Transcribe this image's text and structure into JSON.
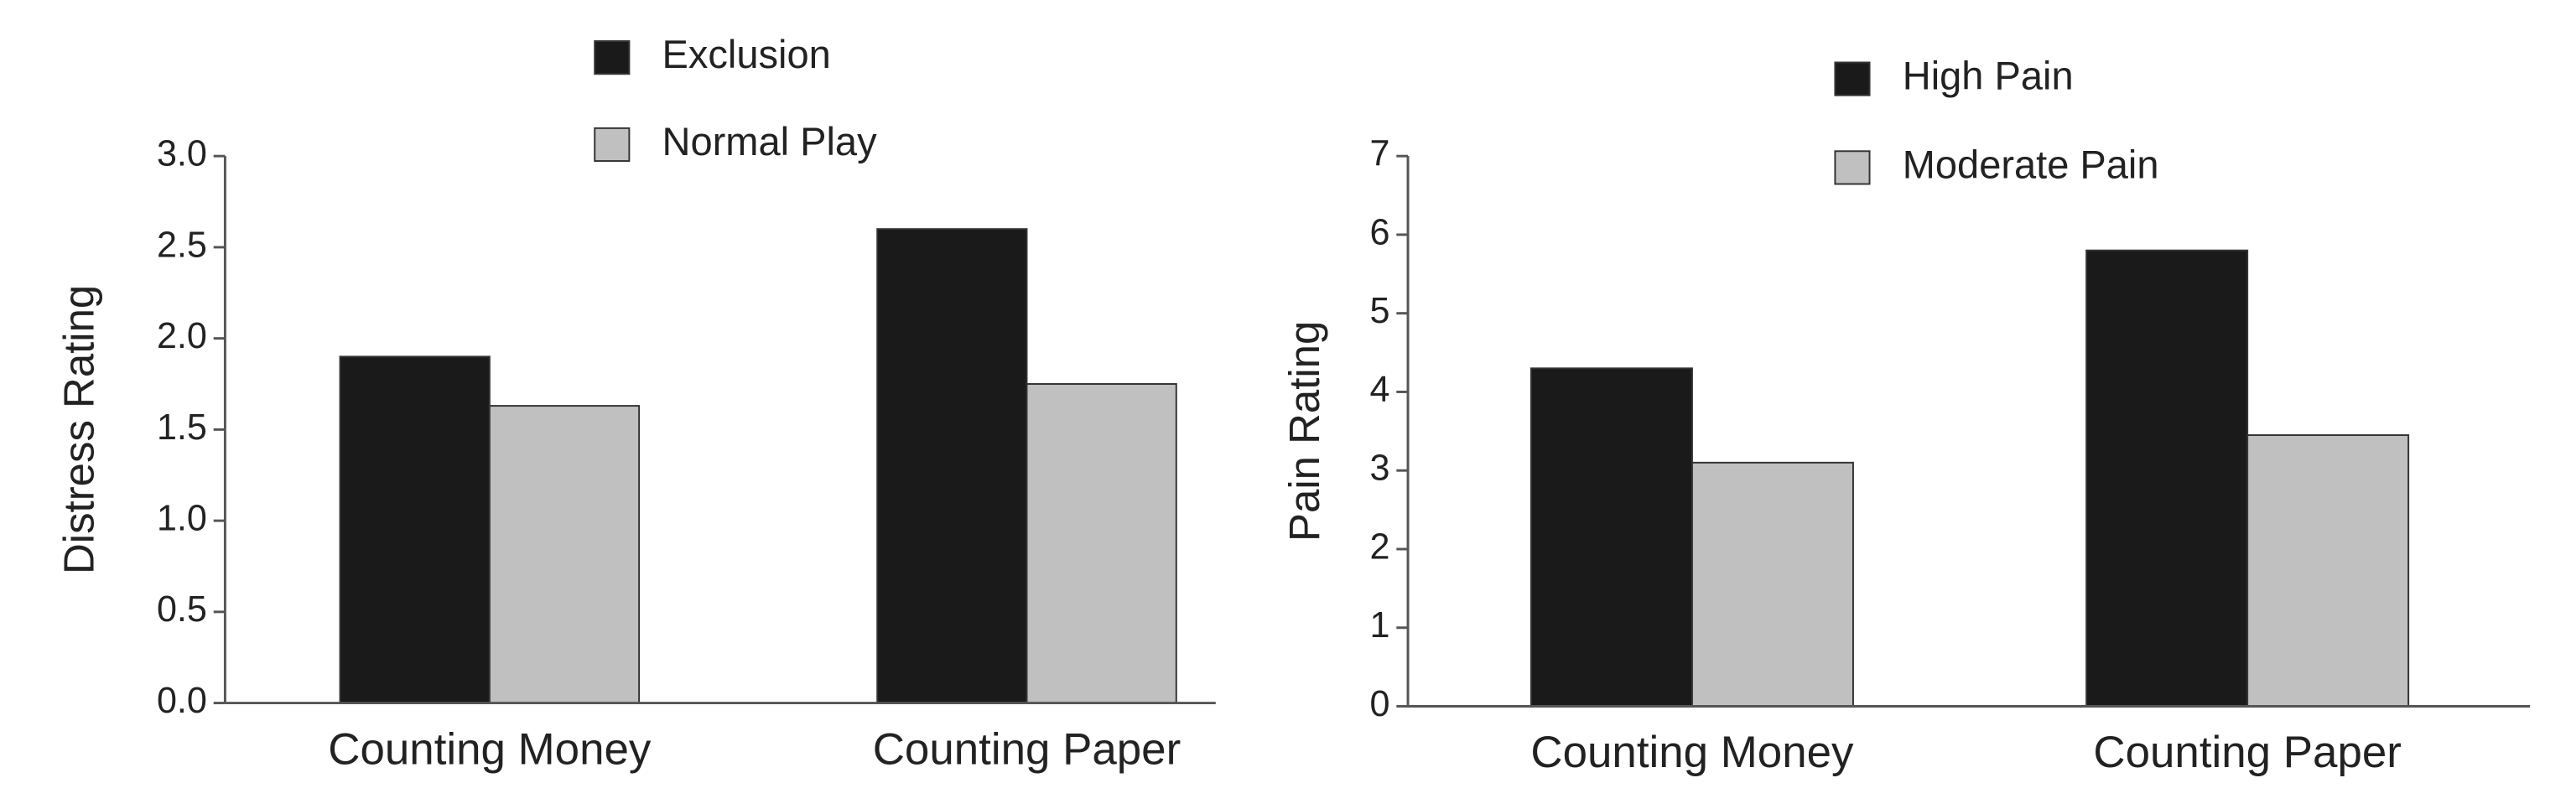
{
  "chart_data": [
    {
      "type": "bar",
      "y_label": "Distress Rating",
      "categories": [
        "Counting Money",
        "Counting Paper"
      ],
      "series": [
        {
          "name": "Exclusion",
          "color": "#1a1a1a",
          "values": [
            1.9,
            2.6
          ]
        },
        {
          "name": "Normal Play",
          "color": "#c0c0c0",
          "values": [
            1.63,
            1.75
          ]
        }
      ],
      "ylim": [
        0,
        3
      ],
      "yticks": [
        {
          "value": 0,
          "label": "0.0"
        },
        0.5,
        {
          "value": 1,
          "label": "1.0"
        },
        1.5,
        {
          "value": 2,
          "label": "2.0"
        },
        2.5,
        {
          "value": 3,
          "label": "3.0"
        }
      ]
    },
    {
      "type": "bar",
      "y_label": "Pain Rating",
      "categories": [
        "Counting Money",
        "Counting Paper"
      ],
      "series": [
        {
          "name": "High Pain",
          "color": "#1a1a1a",
          "values": [
            4.3,
            5.8
          ]
        },
        {
          "name": "Moderate Pain",
          "color": "#c0c0c0",
          "values": [
            3.1,
            3.45
          ]
        }
      ],
      "ylim": [
        0,
        7
      ],
      "yticks": [
        0,
        1,
        2,
        3,
        4,
        5,
        6,
        7
      ]
    }
  ]
}
